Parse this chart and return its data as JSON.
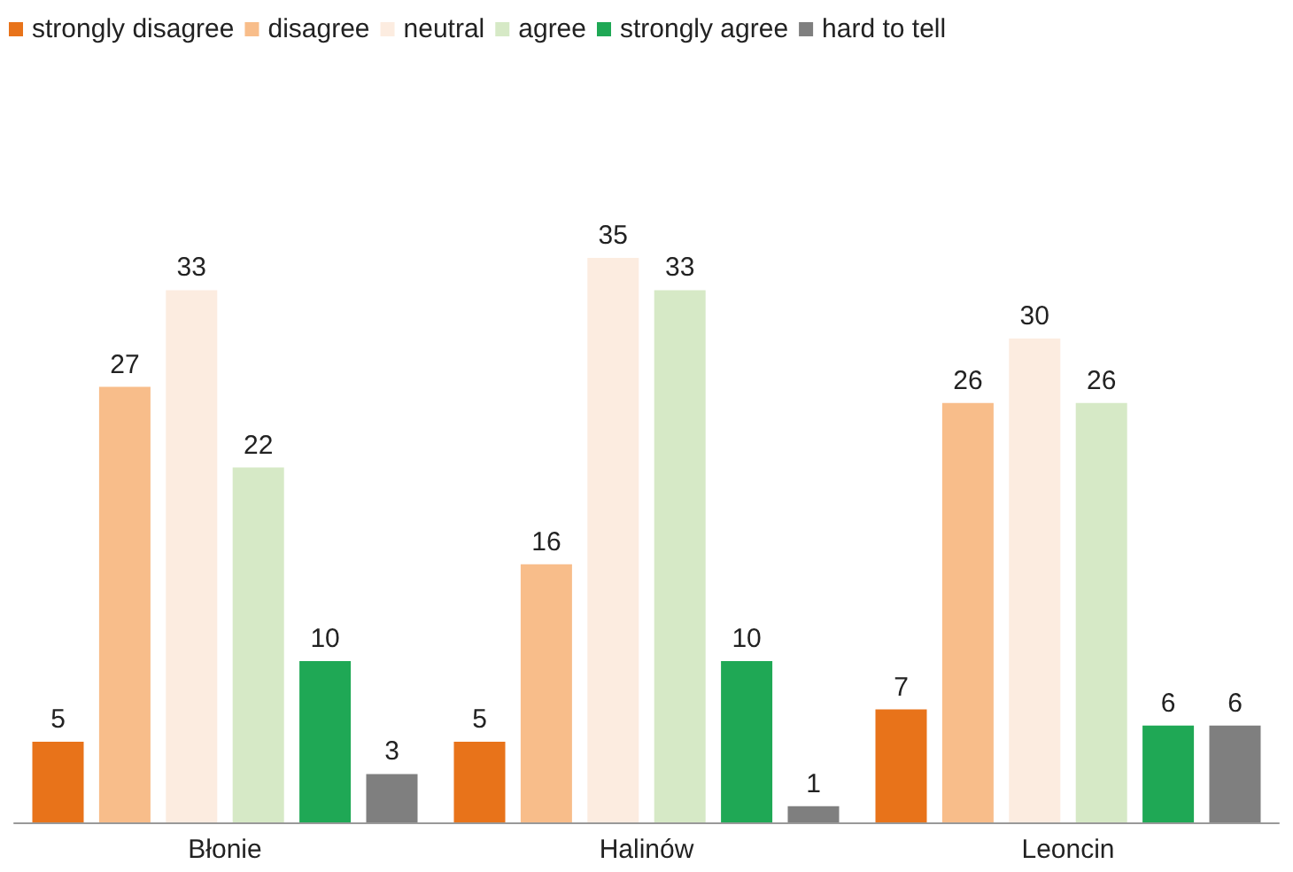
{
  "chart_data": {
    "type": "bar",
    "categories": [
      "Błonie",
      "Halinów",
      "Leoncin"
    ],
    "series": [
      {
        "name": "strongly disagree",
        "color": "#e8731a",
        "values": [
          5,
          5,
          7
        ]
      },
      {
        "name": "disagree",
        "color": "#f8bd8a",
        "values": [
          27,
          16,
          26
        ]
      },
      {
        "name": "neutral",
        "color": "#fcece0",
        "values": [
          33,
          35,
          30
        ]
      },
      {
        "name": "agree",
        "color": "#d6e9c6",
        "values": [
          22,
          33,
          26
        ]
      },
      {
        "name": "strongly agree",
        "color": "#1fa855",
        "values": [
          10,
          10,
          6
        ]
      },
      {
        "name": "hard to tell",
        "color": "#7f7f7f",
        "values": [
          3,
          1,
          6
        ]
      }
    ],
    "data_labels": true,
    "legend": "top left"
  }
}
